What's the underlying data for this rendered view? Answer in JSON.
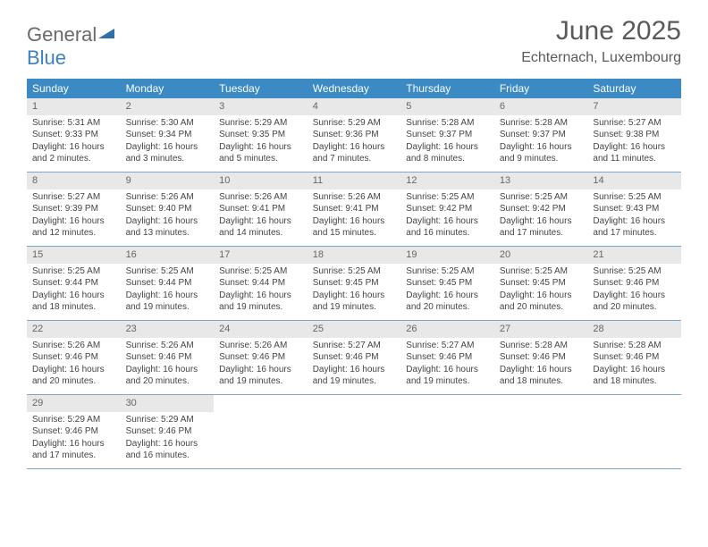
{
  "logo": {
    "text1": "General",
    "text2": "Blue"
  },
  "header": {
    "title": "June 2025",
    "location": "Echternach, Luxembourg"
  },
  "dayNames": [
    "Sunday",
    "Monday",
    "Tuesday",
    "Wednesday",
    "Thursday",
    "Friday",
    "Saturday"
  ],
  "colors": {
    "header_bg": "#3b8ac4",
    "header_fg": "#ffffff",
    "daynum_bg": "#e8e8e8",
    "week_border": "#7aa8c9",
    "text": "#444444",
    "title": "#5a5a5a",
    "logo_gray": "#6a6a6a",
    "logo_blue": "#3b82c4"
  },
  "days": [
    {
      "n": "1",
      "sr": "5:31 AM",
      "ss": "9:33 PM",
      "dl": "16 hours and 2 minutes."
    },
    {
      "n": "2",
      "sr": "5:30 AM",
      "ss": "9:34 PM",
      "dl": "16 hours and 3 minutes."
    },
    {
      "n": "3",
      "sr": "5:29 AM",
      "ss": "9:35 PM",
      "dl": "16 hours and 5 minutes."
    },
    {
      "n": "4",
      "sr": "5:29 AM",
      "ss": "9:36 PM",
      "dl": "16 hours and 7 minutes."
    },
    {
      "n": "5",
      "sr": "5:28 AM",
      "ss": "9:37 PM",
      "dl": "16 hours and 8 minutes."
    },
    {
      "n": "6",
      "sr": "5:28 AM",
      "ss": "9:37 PM",
      "dl": "16 hours and 9 minutes."
    },
    {
      "n": "7",
      "sr": "5:27 AM",
      "ss": "9:38 PM",
      "dl": "16 hours and 11 minutes."
    },
    {
      "n": "8",
      "sr": "5:27 AM",
      "ss": "9:39 PM",
      "dl": "16 hours and 12 minutes."
    },
    {
      "n": "9",
      "sr": "5:26 AM",
      "ss": "9:40 PM",
      "dl": "16 hours and 13 minutes."
    },
    {
      "n": "10",
      "sr": "5:26 AM",
      "ss": "9:41 PM",
      "dl": "16 hours and 14 minutes."
    },
    {
      "n": "11",
      "sr": "5:26 AM",
      "ss": "9:41 PM",
      "dl": "16 hours and 15 minutes."
    },
    {
      "n": "12",
      "sr": "5:25 AM",
      "ss": "9:42 PM",
      "dl": "16 hours and 16 minutes."
    },
    {
      "n": "13",
      "sr": "5:25 AM",
      "ss": "9:42 PM",
      "dl": "16 hours and 17 minutes."
    },
    {
      "n": "14",
      "sr": "5:25 AM",
      "ss": "9:43 PM",
      "dl": "16 hours and 17 minutes."
    },
    {
      "n": "15",
      "sr": "5:25 AM",
      "ss": "9:44 PM",
      "dl": "16 hours and 18 minutes."
    },
    {
      "n": "16",
      "sr": "5:25 AM",
      "ss": "9:44 PM",
      "dl": "16 hours and 19 minutes."
    },
    {
      "n": "17",
      "sr": "5:25 AM",
      "ss": "9:44 PM",
      "dl": "16 hours and 19 minutes."
    },
    {
      "n": "18",
      "sr": "5:25 AM",
      "ss": "9:45 PM",
      "dl": "16 hours and 19 minutes."
    },
    {
      "n": "19",
      "sr": "5:25 AM",
      "ss": "9:45 PM",
      "dl": "16 hours and 20 minutes."
    },
    {
      "n": "20",
      "sr": "5:25 AM",
      "ss": "9:45 PM",
      "dl": "16 hours and 20 minutes."
    },
    {
      "n": "21",
      "sr": "5:25 AM",
      "ss": "9:46 PM",
      "dl": "16 hours and 20 minutes."
    },
    {
      "n": "22",
      "sr": "5:26 AM",
      "ss": "9:46 PM",
      "dl": "16 hours and 20 minutes."
    },
    {
      "n": "23",
      "sr": "5:26 AM",
      "ss": "9:46 PM",
      "dl": "16 hours and 20 minutes."
    },
    {
      "n": "24",
      "sr": "5:26 AM",
      "ss": "9:46 PM",
      "dl": "16 hours and 19 minutes."
    },
    {
      "n": "25",
      "sr": "5:27 AM",
      "ss": "9:46 PM",
      "dl": "16 hours and 19 minutes."
    },
    {
      "n": "26",
      "sr": "5:27 AM",
      "ss": "9:46 PM",
      "dl": "16 hours and 19 minutes."
    },
    {
      "n": "27",
      "sr": "5:28 AM",
      "ss": "9:46 PM",
      "dl": "16 hours and 18 minutes."
    },
    {
      "n": "28",
      "sr": "5:28 AM",
      "ss": "9:46 PM",
      "dl": "16 hours and 18 minutes."
    },
    {
      "n": "29",
      "sr": "5:29 AM",
      "ss": "9:46 PM",
      "dl": "16 hours and 17 minutes."
    },
    {
      "n": "30",
      "sr": "5:29 AM",
      "ss": "9:46 PM",
      "dl": "16 hours and 16 minutes."
    }
  ],
  "labels": {
    "sunrise": "Sunrise:",
    "sunset": "Sunset:",
    "daylight": "Daylight:"
  },
  "layout": {
    "columns": 7,
    "first_day_col": 0,
    "total_cells": 35
  },
  "typography": {
    "title_fontsize": 30,
    "location_fontsize": 16,
    "dayhead_fontsize": 12,
    "daynum_fontsize": 11,
    "cell_fontsize": 10
  }
}
